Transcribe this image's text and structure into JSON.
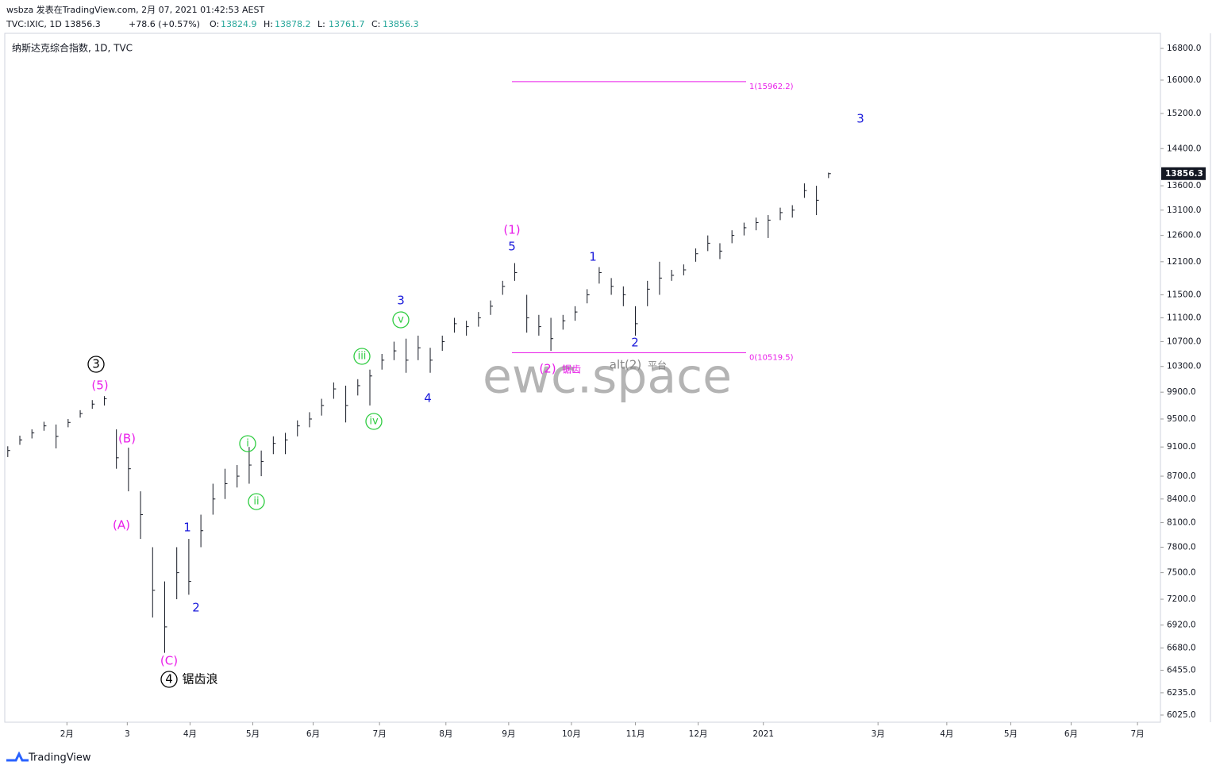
{
  "header": {
    "publisher": "wsbza 发表在TradingView.com, 2月 07, 2021 01:42:53 AEST",
    "symbol": "TVC:IXIC, 1D 13856.3",
    "change": "+78.6 (+0.57%)",
    "ohlc": [
      {
        "key": "O:",
        "value": "13824.9"
      },
      {
        "key": "H:",
        "value": "13878.2"
      },
      {
        "key": "L:",
        "value": "13761.7"
      },
      {
        "key": "C:",
        "value": "13856.3"
      }
    ]
  },
  "chart_data": {
    "type": "ohlc",
    "title": "纳斯达克综合指数, 1D, TVC",
    "watermark": "ewc.space",
    "log_scale": true,
    "color": "#131722",
    "high": [
      9110,
      9260,
      9350,
      9460,
      9420,
      9500,
      9630,
      9780,
      9840,
      9350,
      9090,
      8500,
      7800,
      7400,
      7800,
      7900,
      8200,
      8600,
      8800,
      8850,
      9100,
      9050,
      9250,
      9300,
      9480,
      9600,
      9800,
      10050,
      10000,
      10100,
      10250,
      10500,
      10700,
      10750,
      10800,
      10600,
      10800,
      11100,
      11050,
      11200,
      11400,
      11750,
      12075,
      11500,
      11150,
      11100,
      11150,
      11300,
      11600,
      12000,
      11800,
      11650,
      11300,
      11750,
      12100,
      11950,
      12050,
      12350,
      12600,
      12450,
      12700,
      12850,
      12950,
      13000,
      13150,
      13200,
      13650,
      13600,
      13878.2
    ],
    "low": [
      8960,
      9130,
      9220,
      9330,
      9080,
      9380,
      9520,
      9650,
      9700,
      8800,
      8500,
      7900,
      7000,
      6630,
      7200,
      7250,
      7800,
      8200,
      8400,
      8550,
      8600,
      8700,
      9000,
      9000,
      9250,
      9380,
      9550,
      9800,
      9450,
      9850,
      9700,
      10250,
      10400,
      10200,
      10400,
      10200,
      10550,
      10850,
      10800,
      10950,
      11150,
      11500,
      11750,
      10850,
      10800,
      10550,
      10900,
      11050,
      11350,
      11700,
      11500,
      11300,
      10800,
      11300,
      11500,
      11750,
      11850,
      12100,
      12300,
      12150,
      12450,
      12600,
      12700,
      12550,
      12900,
      12950,
      13350,
      13000,
      13761.7
    ],
    "close": [
      9050,
      9200,
      9300,
      9400,
      9250,
      9450,
      9580,
      9720,
      9800,
      8950,
      8800,
      8200,
      7300,
      6900,
      7500,
      7400,
      8000,
      8400,
      8600,
      8700,
      8850,
      8900,
      9150,
      9200,
      9400,
      9500,
      9700,
      9950,
      9700,
      10000,
      10150,
      10400,
      10550,
      10400,
      10600,
      10400,
      10700,
      11000,
      10950,
      11100,
      11300,
      11650,
      11900,
      11100,
      10950,
      10750,
      11050,
      11200,
      11500,
      11900,
      11650,
      11500,
      11000,
      11600,
      11800,
      11850,
      11950,
      12250,
      12450,
      12300,
      12600,
      12750,
      12850,
      12900,
      13050,
      13100,
      13500,
      13300,
      13856.3
    ],
    "last_price": {
      "value": 13856.3,
      "label": "13856.3"
    },
    "ylim": [
      5959,
      17194
    ],
    "yticks": [
      {
        "value": 6025,
        "label": "6025.0"
      },
      {
        "value": 6235,
        "label": "6235.0"
      },
      {
        "value": 6455,
        "label": "6455.0"
      },
      {
        "value": 6680,
        "label": "6680.0"
      },
      {
        "value": 6920,
        "label": "6920.0"
      },
      {
        "value": 7200,
        "label": "7200.0"
      },
      {
        "value": 7500,
        "label": "7500.0"
      },
      {
        "value": 7800,
        "label": "7800.0"
      },
      {
        "value": 8100,
        "label": "8100.0"
      },
      {
        "value": 8400,
        "label": "8400.0"
      },
      {
        "value": 8700,
        "label": "8700.0"
      },
      {
        "value": 9100,
        "label": "9100.0"
      },
      {
        "value": 9500,
        "label": "9500.0"
      },
      {
        "value": 9900,
        "label": "9900.0"
      },
      {
        "value": 10300,
        "label": "10300.0"
      },
      {
        "value": 10700,
        "label": "10700.0"
      },
      {
        "value": 11100,
        "label": "11100.0"
      },
      {
        "value": 11500,
        "label": "11500.0"
      },
      {
        "value": 12100,
        "label": "12100.0"
      },
      {
        "value": 12600,
        "label": "12600.0"
      },
      {
        "value": 13100,
        "label": "13100.0"
      },
      {
        "value": 13600,
        "label": "13600.0"
      },
      {
        "value": 14400,
        "label": "14400.0"
      },
      {
        "value": 15200,
        "label": "15200.0"
      },
      {
        "value": 16000,
        "label": "16000.0"
      },
      {
        "value": 16800,
        "label": "16800.0"
      }
    ],
    "xlim": [
      -0.25,
      95.5
    ],
    "xticks": [
      {
        "value": 4.9,
        "label": "2月"
      },
      {
        "value": 9.9,
        "label": "3"
      },
      {
        "value": 15.1,
        "label": "4月"
      },
      {
        "value": 20.3,
        "label": "5月"
      },
      {
        "value": 25.3,
        "label": "6月"
      },
      {
        "value": 30.8,
        "label": "7月"
      },
      {
        "value": 36.3,
        "label": "8月"
      },
      {
        "value": 41.5,
        "label": "9月"
      },
      {
        "value": 46.7,
        "label": "10月"
      },
      {
        "value": 52,
        "label": "11月"
      },
      {
        "value": 57.2,
        "label": "12月"
      },
      {
        "value": 62.6,
        "label": "2021"
      },
      {
        "value": 72.1,
        "label": "3月"
      },
      {
        "value": 77.8,
        "label": "4月"
      },
      {
        "value": 83.1,
        "label": "5月"
      },
      {
        "value": 88.1,
        "label": "6月"
      },
      {
        "value": 93.6,
        "label": "7月"
      }
    ],
    "fib_levels": [
      {
        "value": 15962.2,
        "label": "1(15962.2)"
      },
      {
        "value": 10519.5,
        "label": "0(10519.5)"
      }
    ],
    "fib_color": "#e91ee9",
    "annotations": [
      {
        "text": "3",
        "color": "#000000"
      },
      {
        "text": "(5)",
        "color": "#e91ee9"
      },
      {
        "text": "(B)",
        "color": "#e91ee9"
      },
      {
        "text": "(A)",
        "color": "#e91ee9"
      },
      {
        "text": "(C)",
        "color": "#e91ee9"
      },
      {
        "text": "4",
        "color": "#000000"
      },
      {
        "text": "锯齿浪",
        "color": "#000000"
      },
      {
        "text": "1",
        "color": "#1a1adb"
      },
      {
        "text": "2",
        "color": "#1a1adb"
      },
      {
        "text": "i",
        "color": "#2ecc40"
      },
      {
        "text": "ii",
        "color": "#2ecc40"
      },
      {
        "text": "iii",
        "color": "#2ecc40"
      },
      {
        "text": "iv",
        "color": "#2ecc40"
      },
      {
        "text": "v",
        "color": "#2ecc40"
      },
      {
        "text": "3",
        "color": "#1a1adb"
      },
      {
        "text": "4",
        "color": "#1a1adb"
      },
      {
        "text": "(1)",
        "color": "#e91ee9"
      },
      {
        "text": "5",
        "color": "#1a1adb"
      },
      {
        "text": "(2)",
        "color": "#e91ee9"
      },
      {
        "text": "锯齿",
        "color": "#e91ee9"
      },
      {
        "text": "alt(2)",
        "color": "#888888"
      },
      {
        "text": "平台",
        "color": "#888888"
      },
      {
        "text": "1",
        "color": "#1a1adb"
      },
      {
        "text": "2",
        "color": "#1a1adb"
      },
      {
        "text": "3",
        "color": "#1a1adb"
      }
    ]
  },
  "footer": {
    "brand": "TradingView"
  }
}
